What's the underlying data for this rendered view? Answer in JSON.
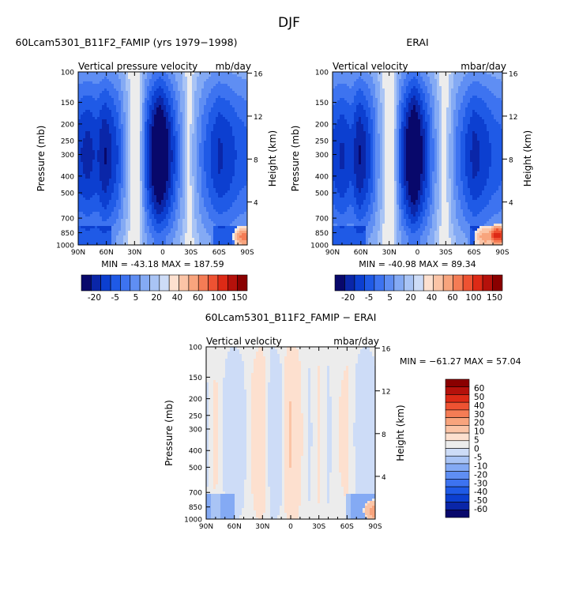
{
  "season": "DJF",
  "colors": {
    "neg": [
      "#08086b",
      "#0a26a8",
      "#0c3fd0",
      "#1f5ae6",
      "#3d73f0",
      "#5f8ef3",
      "#84aaf4",
      "#a9c4f5",
      "#cddcf7"
    ],
    "zero": "#ececec",
    "pos": [
      "#fde0cf",
      "#fbc4a6",
      "#f8a47d",
      "#f47c55",
      "#ee5232",
      "#dd2a16",
      "#b5110b",
      "#8a0000"
    ]
  },
  "chart_data": [
    {
      "type": "heatmap",
      "title": "60Lcam5301_B11F2_FAMIP (yrs 1979−1998)",
      "left_string": "Vertical pressure velocity",
      "right_string": "mb/day",
      "xlabel": "",
      "ylabel": "Pressure (mb)",
      "y2label": "Height (km)",
      "x_range": [
        90,
        -90
      ],
      "x_ticks": [
        {
          "v": 90,
          "label": "90N"
        },
        {
          "v": 60,
          "label": "60N"
        },
        {
          "v": 30,
          "label": "30N"
        },
        {
          "v": 0,
          "label": "0"
        },
        {
          "v": -30,
          "label": "30S"
        },
        {
          "v": -60,
          "label": "60S"
        },
        {
          "v": -90,
          "label": "90S"
        }
      ],
      "y_ticks": [
        100,
        150,
        200,
        250,
        300,
        400,
        500,
        700,
        850,
        1000
      ],
      "y2_ticks": [
        4,
        8,
        12,
        16
      ],
      "stats": "MIN = -43.18   MAX = 187.59",
      "min": -43.18,
      "max": 187.59,
      "lat_profile": [
        {
          "lat": 90,
          "v": -24
        },
        {
          "lat": 80,
          "v": -27
        },
        {
          "lat": 70,
          "v": -24
        },
        {
          "lat": 62,
          "v": -30
        },
        {
          "lat": 55,
          "v": -26
        },
        {
          "lat": 47,
          "v": -20
        },
        {
          "lat": 42,
          "v": -12
        },
        {
          "lat": 36,
          "v": -4
        },
        {
          "lat": 30,
          "v": 4
        },
        {
          "lat": 24,
          "v": -2
        },
        {
          "lat": 17,
          "v": -22
        },
        {
          "lat": 10,
          "v": -33
        },
        {
          "lat": 4,
          "v": -40
        },
        {
          "lat": 0,
          "v": -37
        },
        {
          "lat": -6,
          "v": -30
        },
        {
          "lat": -12,
          "v": -22
        },
        {
          "lat": -20,
          "v": -10
        },
        {
          "lat": -28,
          "v": 0
        },
        {
          "lat": -34,
          "v": -6
        },
        {
          "lat": -42,
          "v": -15
        },
        {
          "lat": -52,
          "v": -22
        },
        {
          "lat": -60,
          "v": -26
        },
        {
          "lat": -70,
          "v": -24
        },
        {
          "lat": -80,
          "v": -20
        },
        {
          "lat": -90,
          "v": -18
        }
      ],
      "positive_spots": [
        {
          "lat": -87,
          "p": 900,
          "v": 40
        }
      ]
    },
    {
      "type": "heatmap",
      "title": "ERAI",
      "left_string": "Vertical velocity",
      "right_string": "mbar/day",
      "xlabel": "",
      "ylabel": "Pressure (mb)",
      "y2label": "Height (km)",
      "x_range": [
        90,
        -90
      ],
      "x_ticks": [
        {
          "v": 90,
          "label": "90N"
        },
        {
          "v": 60,
          "label": "60N"
        },
        {
          "v": 30,
          "label": "30N"
        },
        {
          "v": 0,
          "label": "0"
        },
        {
          "v": -30,
          "label": "30S"
        },
        {
          "v": -60,
          "label": "60S"
        },
        {
          "v": -90,
          "label": "90S"
        }
      ],
      "y_ticks": [
        100,
        150,
        200,
        250,
        300,
        400,
        500,
        700,
        850,
        1000
      ],
      "y2_ticks": [
        4,
        8,
        12,
        16
      ],
      "stats": "MIN = -40.98   MAX =  89.34",
      "min": -40.98,
      "max": 89.34,
      "lat_profile": [
        {
          "lat": 90,
          "v": -22
        },
        {
          "lat": 80,
          "v": -26
        },
        {
          "lat": 70,
          "v": -22
        },
        {
          "lat": 62,
          "v": -30
        },
        {
          "lat": 55,
          "v": -26
        },
        {
          "lat": 47,
          "v": -18
        },
        {
          "lat": 42,
          "v": -10
        },
        {
          "lat": 36,
          "v": -3
        },
        {
          "lat": 30,
          "v": 4
        },
        {
          "lat": 24,
          "v": -3
        },
        {
          "lat": 17,
          "v": -22
        },
        {
          "lat": 10,
          "v": -33
        },
        {
          "lat": 4,
          "v": -40
        },
        {
          "lat": 0,
          "v": -36
        },
        {
          "lat": -6,
          "v": -28
        },
        {
          "lat": -12,
          "v": -20
        },
        {
          "lat": -20,
          "v": -8
        },
        {
          "lat": -28,
          "v": 1
        },
        {
          "lat": -34,
          "v": -4
        },
        {
          "lat": -42,
          "v": -14
        },
        {
          "lat": -52,
          "v": -22
        },
        {
          "lat": -60,
          "v": -27
        },
        {
          "lat": -70,
          "v": -24
        },
        {
          "lat": -80,
          "v": -20
        },
        {
          "lat": -90,
          "v": -18
        }
      ],
      "positive_spots": [
        {
          "lat": -72,
          "p": 900,
          "v": 30
        },
        {
          "lat": -85,
          "p": 880,
          "v": 60
        }
      ]
    },
    {
      "type": "heatmap",
      "title": "60Lcam5301_B11F2_FAMIP − ERAI",
      "left_string": "Vertical velocity",
      "right_string": "mbar/day",
      "xlabel": "",
      "ylabel": "Pressure (mb)",
      "y2label": "Height (km)",
      "x_range": [
        90,
        -90
      ],
      "x_ticks": [
        {
          "v": 90,
          "label": "90N"
        },
        {
          "v": 60,
          "label": "60N"
        },
        {
          "v": 30,
          "label": "30N"
        },
        {
          "v": 0,
          "label": "0"
        },
        {
          "v": -30,
          "label": "30S"
        },
        {
          "v": -60,
          "label": "60S"
        },
        {
          "v": -90,
          "label": "90S"
        }
      ],
      "y_ticks": [
        100,
        150,
        200,
        250,
        300,
        400,
        500,
        700,
        850,
        1000
      ],
      "y2_ticks": [
        4,
        8,
        12,
        16
      ],
      "stats": "MIN = −61.27   MAX =  57.04",
      "min": -61.27,
      "max": 57.04,
      "lat_profile": [
        {
          "lat": 90,
          "v": -1
        },
        {
          "lat": 80,
          "v": 1
        },
        {
          "lat": 70,
          "v": -1
        },
        {
          "lat": 60,
          "v": -2
        },
        {
          "lat": 50,
          "v": -1
        },
        {
          "lat": 40,
          "v": 1
        },
        {
          "lat": 30,
          "v": 2
        },
        {
          "lat": 20,
          "v": -2
        },
        {
          "lat": 10,
          "v": -1
        },
        {
          "lat": 4,
          "v": 2
        },
        {
          "lat": 0,
          "v": 4
        },
        {
          "lat": -5,
          "v": 2
        },
        {
          "lat": -10,
          "v": 1
        },
        {
          "lat": -20,
          "v": -1
        },
        {
          "lat": -30,
          "v": 1
        },
        {
          "lat": -40,
          "v": -1
        },
        {
          "lat": -50,
          "v": 0.5
        },
        {
          "lat": -60,
          "v": 1
        },
        {
          "lat": -70,
          "v": -1
        },
        {
          "lat": -80,
          "v": -2
        },
        {
          "lat": -90,
          "v": -1
        }
      ],
      "positive_spots": [
        {
          "lat": -90,
          "p": 900,
          "v": 20
        }
      ]
    }
  ],
  "colorbars": [
    {
      "orientation": "horizontal",
      "labels": [
        "-20",
        "-5",
        "5",
        "20",
        "40",
        "60",
        "100",
        "150"
      ]
    },
    {
      "orientation": "horizontal",
      "labels": [
        "-20",
        "-5",
        "5",
        "20",
        "40",
        "60",
        "100",
        "150"
      ]
    },
    {
      "orientation": "vertical",
      "labels": [
        "60",
        "50",
        "40",
        "30",
        "20",
        "10",
        "5",
        "0",
        "-5",
        "-10",
        "-20",
        "-30",
        "-40",
        "-50",
        "-60"
      ]
    }
  ]
}
